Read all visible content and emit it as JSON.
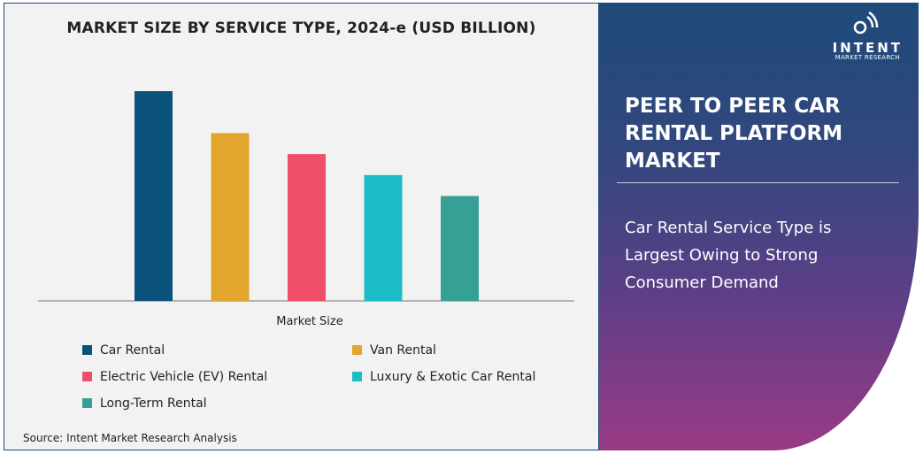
{
  "chart_data": {
    "type": "bar",
    "title": "MARKET SIZE BY SERVICE TYPE, 2024-e (USD BILLION)",
    "xlabel": "Market Size",
    "ylabel": "",
    "categories": [
      "Car Rental",
      "Van Rental",
      "Electric Vehicle (EV) Rental",
      "Luxury & Exotic Car Rental",
      "Long-Term Rental"
    ],
    "values": [
      100,
      80,
      70,
      60,
      50
    ],
    "value_note_relative": true,
    "colors": [
      "#0b527a",
      "#e2a52e",
      "#ef4f68",
      "#1cbdc6",
      "#36a094"
    ],
    "grid": false,
    "legend_position": "bottom"
  },
  "source": "Source: Intent Market Research Analysis",
  "logo": {
    "brand": "INTENT",
    "sub": "MARKET RESEARCH"
  },
  "panel": {
    "headline": "PEER TO PEER CAR RENTAL PLATFORM MARKET",
    "description": "Car Rental Service Type is Largest Owing to Strong Consumer Demand"
  }
}
